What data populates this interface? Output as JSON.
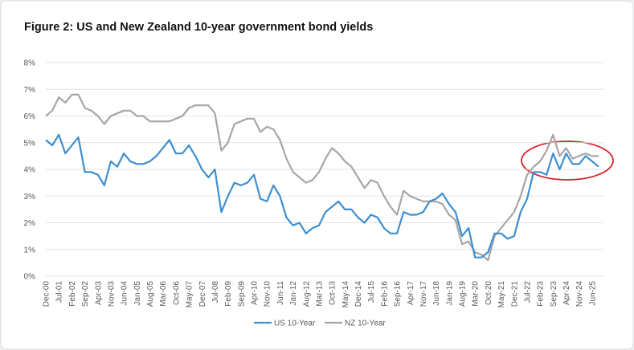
{
  "chart_data": {
    "type": "line",
    "title": "Figure 2: US and New Zealand 10-year government bond yields",
    "categories": [
      "Dec-00",
      null,
      "Jul-01",
      null,
      "Feb-02",
      null,
      "Sep-02",
      null,
      "Apr-03",
      null,
      "Nov-03",
      null,
      "Jun-04",
      null,
      "Jan-05",
      null,
      "Aug-05",
      null,
      "Mar-06",
      null,
      "Oct-06",
      null,
      "May-07",
      null,
      "Dec-07",
      null,
      "Jul-08",
      null,
      "Feb-09",
      null,
      "Sep-09",
      null,
      "Apr-10",
      null,
      "Nov-10",
      null,
      "Jun-11",
      null,
      "Jan-12",
      null,
      "Aug-12",
      null,
      "Mar-13",
      null,
      "Oct-13",
      null,
      "May-14",
      null,
      "Dec-14",
      null,
      "Jul-15",
      null,
      "Feb-16",
      null,
      "Sep-16",
      null,
      "Apr-17",
      null,
      "Nov-17",
      null,
      "Jun-18",
      null,
      "Jan-19",
      null,
      "Aug-19",
      null,
      "Mar-20",
      null,
      "Oct-20",
      null,
      "May-21",
      null,
      "Dec-21",
      null,
      "Jul-22",
      null,
      "Feb-23",
      null,
      "Sep-23",
      null,
      "Apr-24",
      null,
      "Nov-24",
      null,
      "Jun-25",
      null
    ],
    "series": [
      {
        "name": "US 10-Year",
        "color": "#3d8fd1",
        "values": [
          5.1,
          4.9,
          5.3,
          4.6,
          4.9,
          5.2,
          3.9,
          3.9,
          3.8,
          3.4,
          4.3,
          4.1,
          4.6,
          4.3,
          4.2,
          4.2,
          4.3,
          4.5,
          4.8,
          5.1,
          4.6,
          4.6,
          4.9,
          4.5,
          4.0,
          3.7,
          4.0,
          2.4,
          3.0,
          3.5,
          3.4,
          3.5,
          3.8,
          2.9,
          2.8,
          3.4,
          3.0,
          2.2,
          1.9,
          2.0,
          1.6,
          1.8,
          1.9,
          2.4,
          2.6,
          2.8,
          2.5,
          2.5,
          2.2,
          2.0,
          2.3,
          2.2,
          1.8,
          1.6,
          1.6,
          2.4,
          2.3,
          2.3,
          2.4,
          2.8,
          2.9,
          3.1,
          2.7,
          2.4,
          1.5,
          1.8,
          0.7,
          0.7,
          0.9,
          1.6,
          1.6,
          1.4,
          1.5,
          2.4,
          2.9,
          3.9,
          3.9,
          3.8,
          4.6,
          4.0,
          4.6,
          4.2,
          4.2,
          4.5,
          4.3,
          4.1
        ]
      },
      {
        "name": "NZ 10-Year",
        "color": "#a6a6a6",
        "values": [
          6.0,
          6.2,
          6.7,
          6.5,
          6.8,
          6.8,
          6.3,
          6.2,
          6.0,
          5.7,
          6.0,
          6.1,
          6.2,
          6.2,
          6.0,
          6.0,
          5.8,
          5.8,
          5.8,
          5.8,
          5.9,
          6.0,
          6.3,
          6.4,
          6.4,
          6.4,
          6.1,
          4.7,
          5.0,
          5.7,
          5.8,
          5.9,
          5.9,
          5.4,
          5.6,
          5.5,
          5.1,
          4.4,
          3.9,
          3.7,
          3.5,
          3.6,
          3.9,
          4.4,
          4.8,
          4.6,
          4.3,
          4.1,
          3.7,
          3.3,
          3.6,
          3.5,
          3.0,
          2.6,
          2.3,
          3.2,
          3.0,
          2.9,
          2.8,
          2.8,
          2.8,
          2.7,
          2.3,
          2.1,
          1.2,
          1.3,
          0.9,
          0.8,
          0.6,
          1.5,
          1.8,
          2.1,
          2.4,
          3.0,
          3.8,
          4.1,
          4.3,
          4.7,
          5.3,
          4.5,
          4.8,
          4.4,
          4.5,
          4.6,
          4.5,
          4.5
        ]
      }
    ],
    "ylim": [
      0,
      8
    ],
    "yticks": [
      {
        "value": 0,
        "label": "0%"
      },
      {
        "value": 1,
        "label": "1%"
      },
      {
        "value": 2,
        "label": "2%"
      },
      {
        "value": 3,
        "label": "3%"
      },
      {
        "value": 4,
        "label": "4%"
      },
      {
        "value": 5,
        "label": "5%"
      },
      {
        "value": 6,
        "label": "6%"
      },
      {
        "value": 7,
        "label": "7%"
      },
      {
        "value": 8,
        "label": "8%"
      }
    ],
    "grid": true,
    "legend": "bottom"
  }
}
